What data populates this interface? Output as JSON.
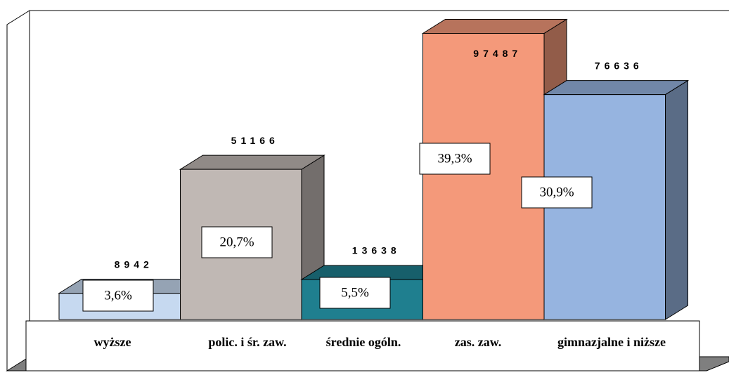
{
  "chart_data": {
    "type": "bar3d",
    "categories": [
      "wyższe",
      "polic. i śr. zaw.",
      "średnie ogóln.",
      "zas. zaw.",
      "gimnazjalne i niższe"
    ],
    "values": [
      8942,
      51166,
      13638,
      97487,
      76636
    ],
    "shares": [
      3.6,
      20.7,
      5.5,
      39.3,
      30.9
    ],
    "share_labels": [
      "3,6%",
      "20,7%",
      "5,5%",
      "39,3%",
      "30,9%"
    ],
    "colors": [
      "#c6d9f0",
      "#c0b8b4",
      "#1f7f8f",
      "#f4997a",
      "#96b4e0"
    ],
    "ylim": [
      0,
      100000
    ]
  }
}
